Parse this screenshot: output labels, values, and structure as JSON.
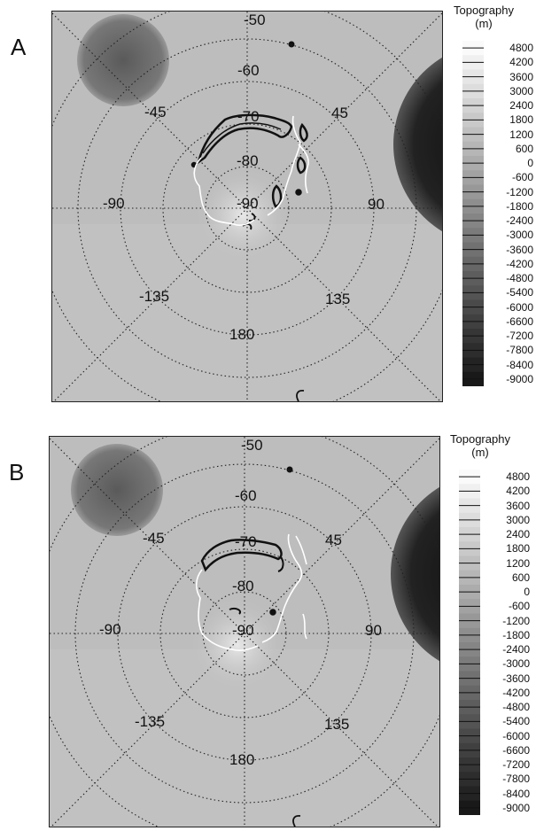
{
  "panels": [
    {
      "label": "A",
      "latitude_labels": [
        "-50",
        "-60",
        "-70",
        "-80",
        "-90"
      ],
      "longitude_labels": [
        "-45",
        "45",
        "-90",
        "90",
        "-135",
        "135",
        "180"
      ],
      "legend": {
        "title": "Topography",
        "unit": "(m)",
        "ticks": [
          "4800",
          "4200",
          "3600",
          "3000",
          "2400",
          "1800",
          "1200",
          "600",
          "0",
          "-600",
          "-1200",
          "-1800",
          "-2400",
          "-3000",
          "-3600",
          "-4200",
          "-4800",
          "-5400",
          "-6000",
          "-6600",
          "-7200",
          "-7800",
          "-8400",
          "-9000"
        ]
      },
      "colors": {
        "map_background": "#bdbdbd",
        "crater_dark": "#1a1a1a",
        "highland_dark": "#6e6e6e",
        "black_contour": "#111111",
        "white_contour": "#ffffff"
      }
    },
    {
      "label": "B",
      "latitude_labels": [
        "-50",
        "-60",
        "-70",
        "-80",
        "-90"
      ],
      "longitude_labels": [
        "-45",
        "45",
        "-90",
        "90",
        "-135",
        "135",
        "180"
      ],
      "legend": {
        "title": "Topography",
        "unit": "(m)",
        "ticks": [
          "4800",
          "4200",
          "3600",
          "3000",
          "2400",
          "1800",
          "1200",
          "600",
          "0",
          "-600",
          "-1200",
          "-1800",
          "-2400",
          "-3000",
          "-3600",
          "-4200",
          "-4800",
          "-5400",
          "-6000",
          "-6600",
          "-7200",
          "-7800",
          "-8400",
          "-9000"
        ]
      },
      "colors": {
        "map_background": "#bdbdbd",
        "crater_dark": "#1a1a1a",
        "highland_dark": "#6e6e6e",
        "black_contour": "#111111",
        "white_contour": "#ffffff"
      }
    }
  ]
}
